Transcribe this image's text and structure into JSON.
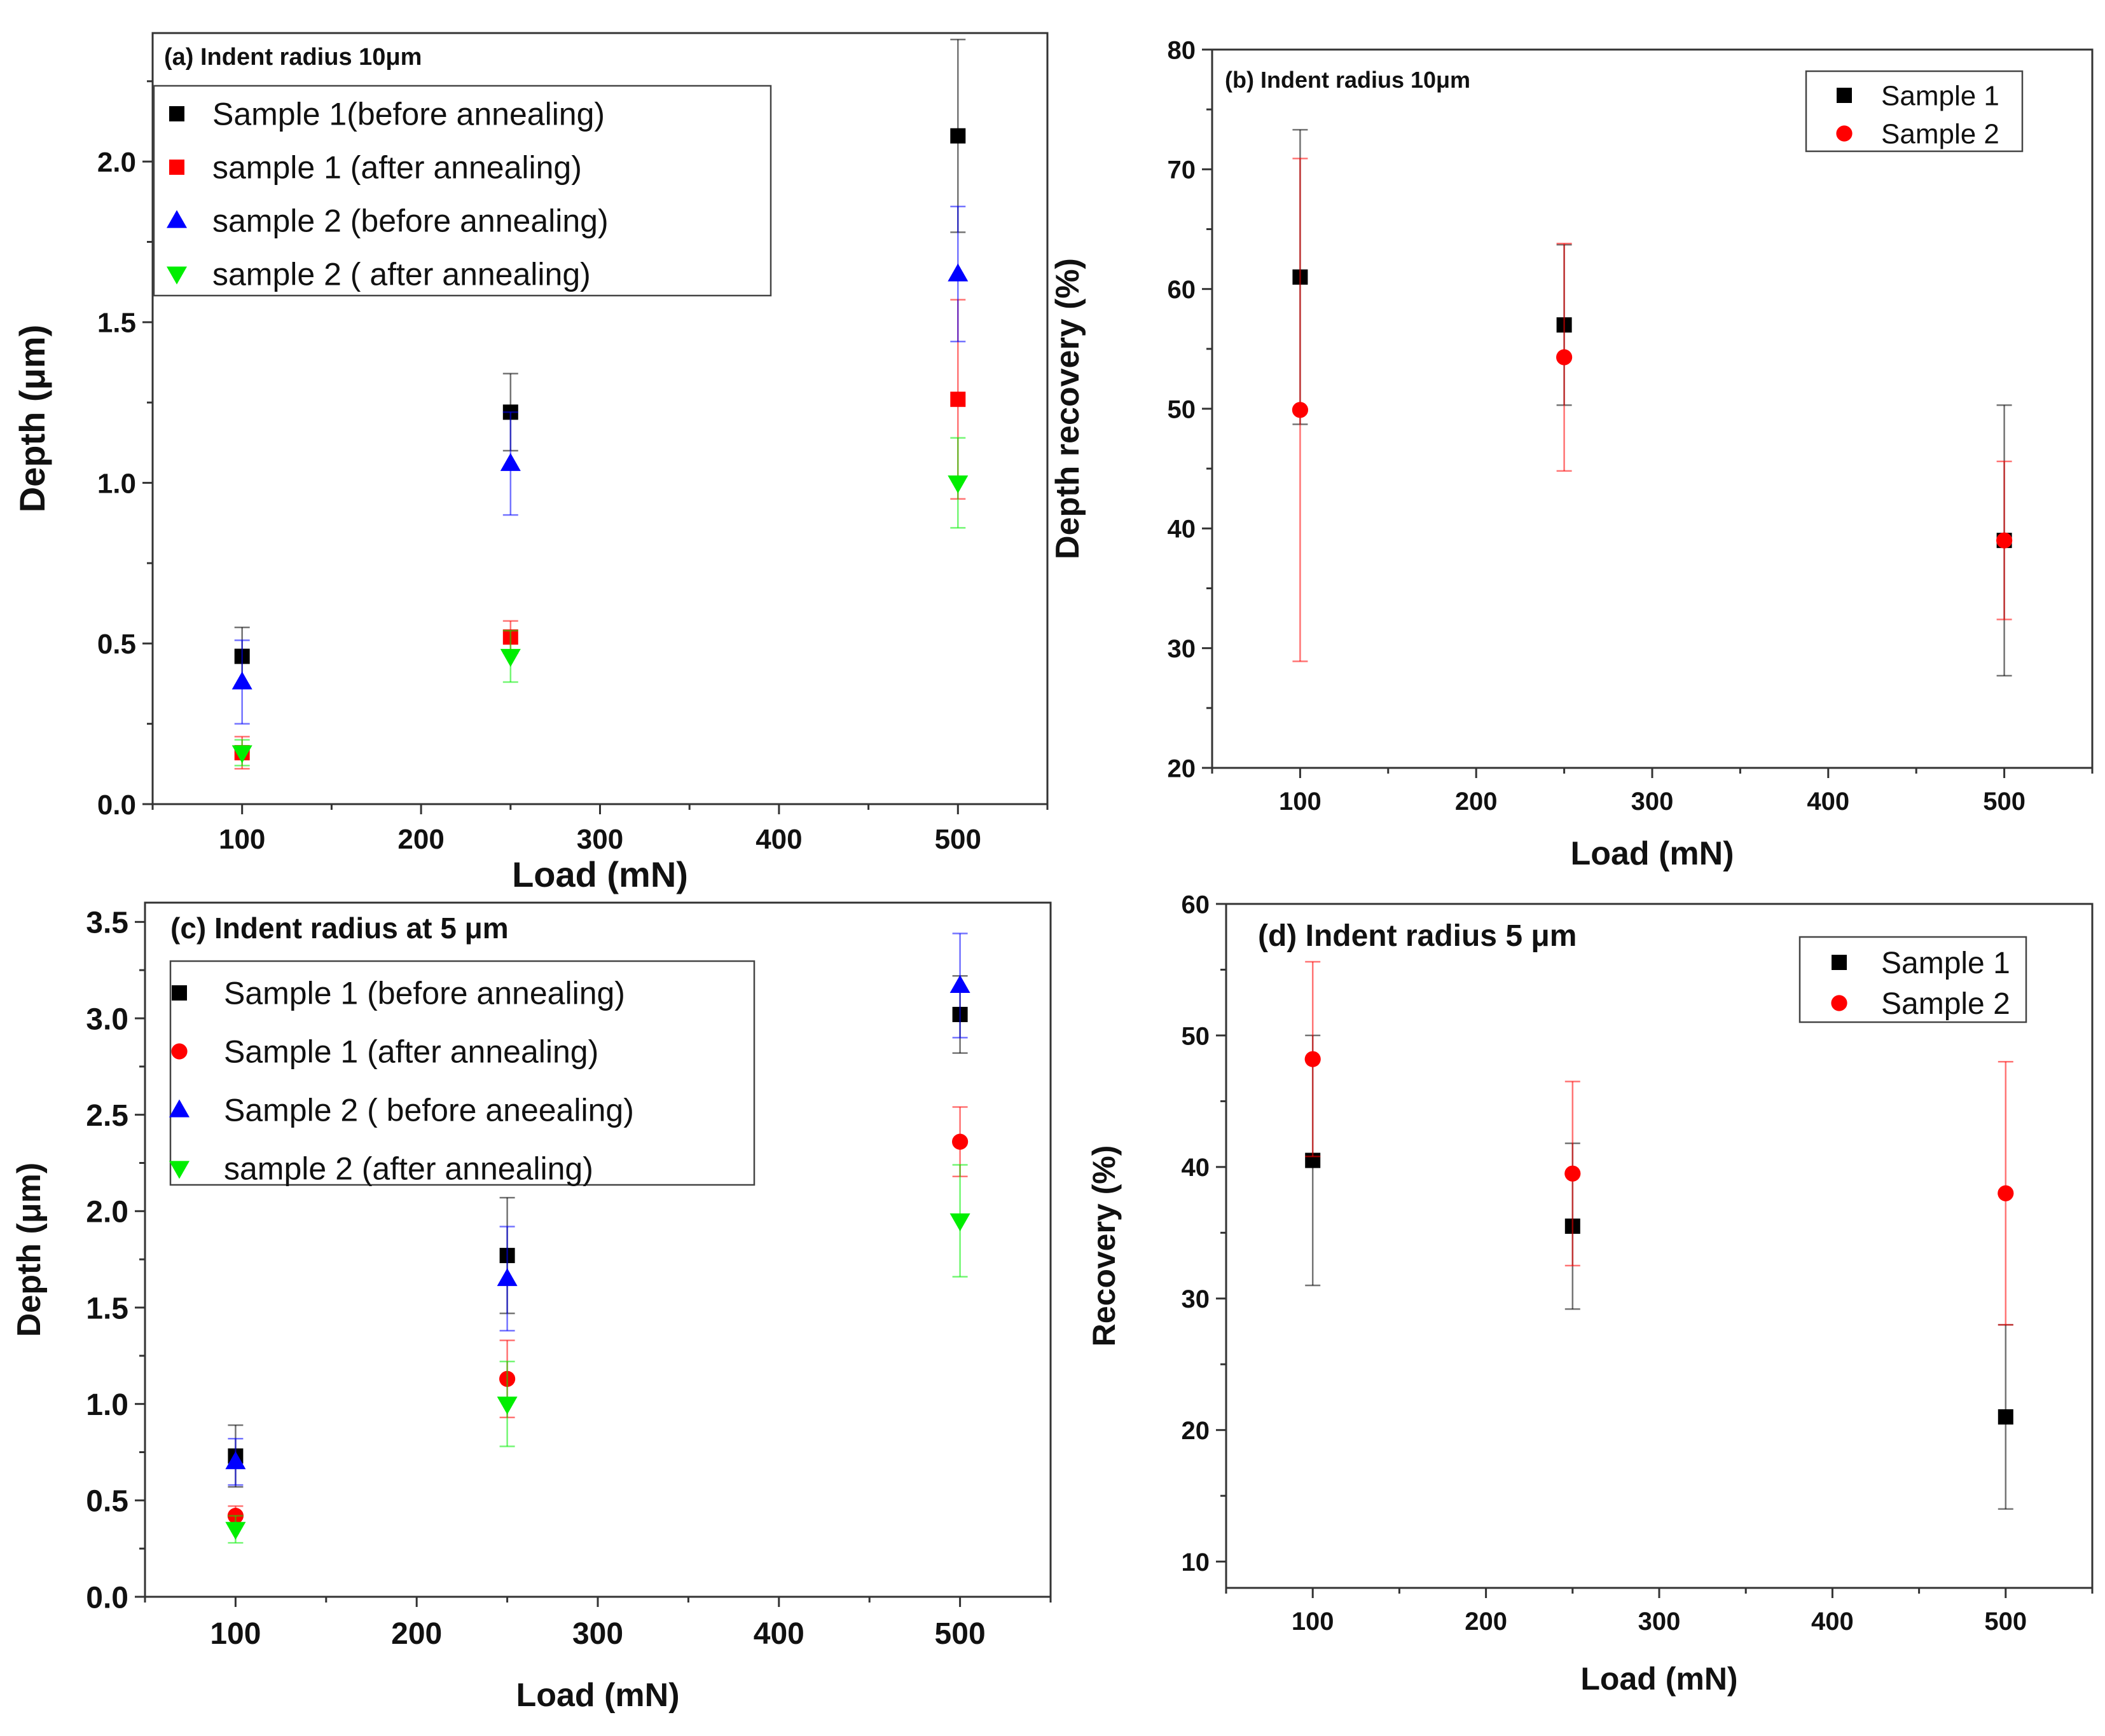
{
  "chart_data": [
    {
      "id": "a",
      "type": "scatter",
      "title": "(a) Indent radius 10μm",
      "xlabel": "Load (mN)",
      "ylabel": "Depth (μm)",
      "xlim": [
        50,
        550
      ],
      "ylim": [
        0.0,
        2.4
      ],
      "xticks": [
        100,
        200,
        300,
        400,
        500
      ],
      "yticks": [
        0.0,
        0.5,
        1.0,
        1.5,
        2.0
      ],
      "xtick_labels": [
        "100",
        "200",
        "300",
        "400",
        "500"
      ],
      "ytick_labels": [
        "0.0",
        "0.5",
        "1.0",
        "1.5",
        "2.0"
      ],
      "legend_position": "top-left",
      "series": [
        {
          "name": "Sample 1(before annealing)",
          "marker": "square",
          "color": "#000000",
          "x": [
            100,
            250,
            500
          ],
          "y": [
            0.46,
            1.22,
            2.08
          ],
          "err": [
            0.09,
            0.12,
            0.3
          ]
        },
        {
          "name": "sample 1 (after annealing)",
          "marker": "square",
          "color": "#ff0000",
          "x": [
            100,
            250,
            500
          ],
          "y": [
            0.16,
            0.52,
            1.26
          ],
          "err": [
            0.05,
            0.05,
            0.31
          ]
        },
        {
          "name": "sample 2 (before annealing)",
          "marker": "triangle-up",
          "color": "#0000ff",
          "x": [
            100,
            250,
            500
          ],
          "y": [
            0.38,
            1.06,
            1.65
          ],
          "err": [
            0.13,
            0.16,
            0.21
          ]
        },
        {
          "name": "sample 2 ( after annealing)",
          "marker": "triangle-down",
          "color": "#00ee00",
          "x": [
            100,
            250,
            500
          ],
          "y": [
            0.16,
            0.46,
            1.0
          ],
          "err": [
            0.04,
            0.08,
            0.14
          ]
        }
      ]
    },
    {
      "id": "b",
      "type": "scatter",
      "title": "(b) Indent radius 10μm",
      "xlabel": "Load (mN)",
      "ylabel": "Depth recovery (%)",
      "xlim": [
        50,
        550
      ],
      "ylim": [
        20,
        80
      ],
      "xticks": [
        100,
        200,
        300,
        400,
        500
      ],
      "yticks": [
        20,
        30,
        40,
        50,
        60,
        70,
        80
      ],
      "xtick_labels": [
        "100",
        "200",
        "300",
        "400",
        "500"
      ],
      "ytick_labels": [
        "20",
        "30",
        "40",
        "50",
        "60",
        "70",
        "80"
      ],
      "legend_position": "top-right",
      "series": [
        {
          "name": "Sample 1",
          "marker": "square",
          "color": "#000000",
          "x": [
            100,
            250,
            500
          ],
          "y": [
            61,
            57,
            39
          ],
          "err": [
            12.3,
            6.7,
            11.3
          ]
        },
        {
          "name": "Sample 2",
          "marker": "circle",
          "color": "#ff0000",
          "x": [
            100,
            250,
            500
          ],
          "y": [
            49.9,
            54.3,
            39
          ],
          "err": [
            21.0,
            9.5,
            6.6
          ]
        }
      ]
    },
    {
      "id": "c",
      "type": "scatter",
      "title": "(c) Indent radius at 5 μm",
      "xlabel": "Load (mN)",
      "ylabel": "Depth (μm)",
      "xlim": [
        50,
        550
      ],
      "ylim": [
        0.0,
        3.6
      ],
      "xticks": [
        100,
        200,
        300,
        400,
        500
      ],
      "yticks": [
        0.0,
        0.5,
        1.0,
        1.5,
        2.0,
        2.5,
        3.0,
        3.5
      ],
      "xtick_labels": [
        "100",
        "200",
        "300",
        "400",
        "500"
      ],
      "ytick_labels": [
        "0.0",
        "0.5",
        "1.0",
        "1.5",
        "2.0",
        "2.5",
        "3.0",
        "3.5"
      ],
      "legend_position": "top-left",
      "series": [
        {
          "name": "Sample 1 (before annealing)",
          "marker": "square",
          "color": "#000000",
          "x": [
            100,
            250,
            500
          ],
          "y": [
            0.73,
            1.77,
            3.02
          ],
          "err": [
            0.16,
            0.3,
            0.2
          ]
        },
        {
          "name": "Sample 1 (after annealing)",
          "marker": "circle",
          "color": "#ff0000",
          "x": [
            100,
            250,
            500
          ],
          "y": [
            0.42,
            1.13,
            2.36
          ],
          "err": [
            0.05,
            0.2,
            0.18
          ]
        },
        {
          "name": "Sample 2 ( before aneealing)",
          "marker": "triangle-up",
          "color": "#0000ff",
          "x": [
            100,
            250,
            500
          ],
          "y": [
            0.7,
            1.65,
            3.17
          ],
          "err": [
            0.12,
            0.27,
            0.27
          ]
        },
        {
          "name": "sample 2 (after annealing)",
          "marker": "triangle-down",
          "color": "#00ee00",
          "x": [
            100,
            250,
            500
          ],
          "y": [
            0.35,
            1.0,
            1.95
          ],
          "err": [
            0.07,
            0.22,
            0.29
          ]
        }
      ]
    },
    {
      "id": "d",
      "type": "scatter",
      "title": "(d) Indent radius 5 μm",
      "xlabel": "Load (mN)",
      "ylabel": "Recovery (%)",
      "xlim": [
        50,
        550
      ],
      "ylim": [
        8,
        60
      ],
      "xticks": [
        100,
        200,
        300,
        400,
        500
      ],
      "yticks": [
        10,
        20,
        30,
        40,
        50,
        60
      ],
      "xtick_labels": [
        "100",
        "200",
        "300",
        "400",
        "500"
      ],
      "ytick_labels": [
        "10",
        "20",
        "30",
        "40",
        "50",
        "60"
      ],
      "legend_position": "top-right",
      "series": [
        {
          "name": "Sample 1",
          "marker": "square",
          "color": "#000000",
          "x": [
            100,
            250,
            500
          ],
          "y": [
            40.5,
            35.5,
            21
          ],
          "err": [
            9.5,
            6.3,
            7.0
          ]
        },
        {
          "name": "Sample 2",
          "marker": "circle",
          "color": "#ff0000",
          "x": [
            100,
            250,
            500
          ],
          "y": [
            48.2,
            39.5,
            38
          ],
          "err": [
            7.4,
            7.0,
            10.0
          ]
        }
      ]
    }
  ]
}
